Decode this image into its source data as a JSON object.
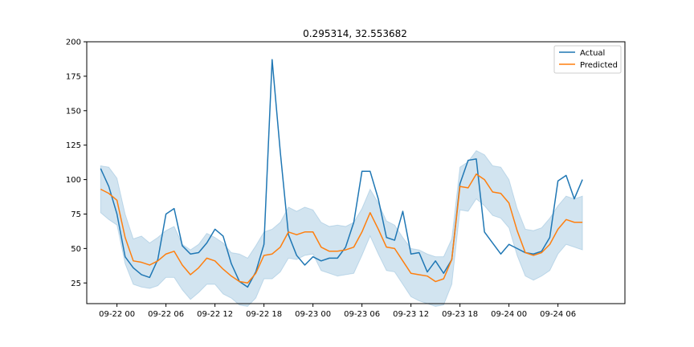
{
  "chart_data": {
    "type": "line",
    "title": "0.295314, 32.553682",
    "xlabel": "",
    "ylabel": "",
    "ylim": [
      10,
      200
    ],
    "xlim": [
      -1.7,
      64.2
    ],
    "yticks": [
      25,
      50,
      75,
      100,
      125,
      150,
      175,
      200
    ],
    "xticks": [
      {
        "pos": 2,
        "label": "09-22 00"
      },
      {
        "pos": 8,
        "label": "09-22 06"
      },
      {
        "pos": 14,
        "label": "09-22 12"
      },
      {
        "pos": 20,
        "label": "09-22 18"
      },
      {
        "pos": 26,
        "label": "09-23 00"
      },
      {
        "pos": 32,
        "label": "09-23 06"
      },
      {
        "pos": 38,
        "label": "09-23 12"
      },
      {
        "pos": 44,
        "label": "09-23 18"
      },
      {
        "pos": 50,
        "label": "09-24 00"
      },
      {
        "pos": 56,
        "label": "09-24 06"
      }
    ],
    "grid": false,
    "legend_position": "top-right",
    "series": [
      {
        "name": "Actual",
        "color": "#1f77b4",
        "values": [
          108,
          95,
          75,
          44,
          36,
          31,
          29,
          42,
          75,
          79,
          52,
          46,
          47,
          54,
          64,
          59,
          39,
          26,
          22,
          33,
          53,
          187,
          120,
          60,
          45,
          38,
          44,
          41,
          43,
          43,
          51,
          69,
          106,
          106,
          86,
          58,
          56,
          77,
          46,
          47,
          33,
          41,
          32,
          42,
          97,
          114,
          115,
          62,
          54,
          46,
          53,
          50,
          47,
          46,
          48,
          58,
          99,
          103,
          86,
          100
        ]
      },
      {
        "name": "Predicted",
        "color": "#ff7f0e",
        "values": [
          93,
          90,
          85,
          58,
          41,
          40,
          38,
          41,
          46,
          48,
          38,
          31,
          36,
          43,
          41,
          35,
          30,
          26,
          25,
          32,
          45,
          46,
          51,
          62,
          60,
          62,
          62,
          51,
          48,
          48,
          49,
          51,
          62,
          76,
          64,
          51,
          50,
          41,
          32,
          31,
          30,
          26,
          28,
          42,
          95,
          94,
          104,
          100,
          91,
          90,
          83,
          63,
          47,
          45,
          47,
          53,
          64,
          71,
          69,
          69
        ]
      }
    ],
    "band": {
      "color": "#1f77b4",
      "opacity": 0.2,
      "upper": [
        110,
        109,
        101,
        75,
        57,
        59,
        54,
        58,
        63,
        66,
        53,
        49,
        53,
        61,
        58,
        54,
        47,
        46,
        43,
        52,
        62,
        64,
        69,
        80,
        77,
        80,
        78,
        69,
        66,
        67,
        66,
        69,
        79,
        93,
        83,
        70,
        67,
        58,
        50,
        49,
        46,
        44,
        44,
        57,
        109,
        113,
        121,
        118,
        110,
        109,
        100,
        79,
        64,
        63,
        65,
        72,
        81,
        88,
        86,
        88
      ],
      "lower": [
        76,
        71,
        67,
        39,
        24,
        22,
        21,
        23,
        29,
        29,
        20,
        13,
        18,
        24,
        24,
        17,
        14,
        9,
        8,
        14,
        28,
        28,
        33,
        43,
        42,
        45,
        46,
        34,
        32,
        30,
        31,
        32,
        45,
        59,
        46,
        34,
        33,
        24,
        15,
        12,
        10,
        8,
        9,
        24,
        78,
        77,
        86,
        81,
        74,
        72,
        65,
        45,
        30,
        27,
        30,
        34,
        46,
        53,
        51,
        49
      ]
    }
  }
}
